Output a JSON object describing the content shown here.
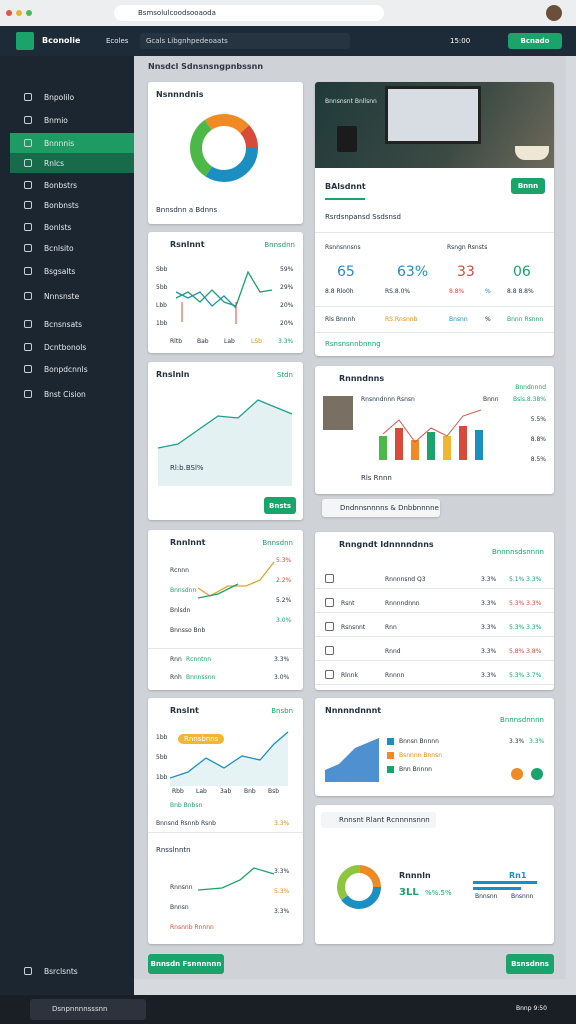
{
  "browser": {
    "url": "Bsmsolulcoodsooaoda"
  },
  "header": {
    "brand": "Bconolie",
    "nav": "Ecoles",
    "search": "Gcals Libgnhpedeoaats",
    "time": "15:00",
    "button": "Bcnado"
  },
  "sidebar": {
    "items": [
      "Bnpolilo",
      "Bnmio",
      "Bnnnnis",
      "Rnlcs",
      "Bonbstrs",
      "Bonbnsts",
      "Bonlsts",
      "Bcnlsito",
      "Bsgsalts",
      "Nnnsnste",
      "Bcnsnsats",
      "Dcntbonols",
      "Bonpdcnnls",
      "Bnst Cision"
    ],
    "footer": "Bsrclsnts"
  },
  "page_title": "Nnsdcl Sdnsnsngpnbssnn",
  "left": {
    "donut_card": {
      "title": "Nsnnndnis",
      "footer": "Bnnsdnn a Bdnns"
    },
    "line_card": {
      "title": "Rsnlnnt",
      "tag": "Bnnsdnn",
      "y_labels": [
        "Sbb",
        "5bb",
        "Lbb",
        "1bb"
      ],
      "right_labels": [
        "59%",
        "29%",
        "20%",
        "20%"
      ],
      "x_labels": [
        "Rltb",
        "Bab",
        "Lab",
        "LSb",
        "3.3%"
      ]
    },
    "area_card": {
      "title": "Rnslnln",
      "tag": "Stdn",
      "label": "Rl:b.BSl%",
      "button": "Bnsts"
    },
    "trend_card": {
      "title": "Rnnlnnt",
      "tag": "Bnnsdnn",
      "labels": [
        "Rcnnn",
        "Bnnsdnn",
        "Bnlsdn",
        "Bnnsso Bnb"
      ],
      "values": [
        "5.3%",
        "2.2%",
        "5.2%",
        "3.0%"
      ],
      "rows": [
        [
          "Rnn",
          "Rcnntnn",
          "3.3%"
        ],
        [
          "Rnh",
          "Bnnnssnn",
          "3.0%"
        ]
      ]
    },
    "growth_card": {
      "title": "Rnslnt",
      "tag": "Bnsbn",
      "pill": "Rnnsbnns",
      "y_labels": [
        "1bb",
        "5bb",
        "1bb"
      ],
      "x_labels": [
        "Rbb",
        "Lab",
        "3ab",
        "Bnb",
        "Bsb"
      ],
      "note": "Bnb Bnbsn",
      "row": [
        "Bnnsnd Rsnnb Rsnb",
        "3.3%"
      ],
      "sub_title": "Rnsslnntn",
      "sub_labels": [
        "Rnnsnn",
        "Bnnsn",
        "Rnsnnb Rnnnn"
      ],
      "sub_values": [
        "3.3%",
        "5.3%",
        "3.3%"
      ]
    },
    "button": "Bnnsdn Fsnnnnnn"
  },
  "right": {
    "image_card": {
      "screen_text": "Bnnsnsnt Bnllsnn",
      "title": "BAlsdnnt",
      "button": "Bnnn",
      "dropdown": "Rsrdsnpansd Ssdsnsd",
      "col_heads": [
        "Rsnnsnnsns",
        "Rsngn Rsnsts"
      ],
      "metrics": [
        "65",
        "63%",
        "33",
        "06"
      ],
      "sub": [
        "8.8 Rlo0h",
        "RS.8.0%",
        "8.8%",
        "%",
        "8.8 8.8%"
      ],
      "row": [
        "Rls Bnnnh",
        "RS.Rnsnnb",
        "Bnsnn",
        "%",
        "Bnnn Rsnnn"
      ],
      "link": "Rsnsnsnnbnnng"
    },
    "bar_card": {
      "title": "Rnnndnns",
      "tag": "Bnndnnnd",
      "values": [
        "Bsls.8.38%",
        "5.5%",
        "8.8%",
        "8.5%"
      ],
      "top_labels": [
        "Rnsnndnnn Rsnsn",
        "Bnnn"
      ],
      "legend": "Rls Rnnn"
    },
    "pill": "Dndnnsnnnns & Dnbbnnnne",
    "table_card": {
      "title": "Rnngndt Idnnnndnns",
      "tag": "Bnnnnsdsnnnn",
      "rows": [
        [
          "Rnnnnsnd Q3",
          "3.3%",
          "5.1% 3.3%"
        ],
        [
          "Rnnnndnnn",
          "3.3%",
          "5.3% 3.3%"
        ],
        [
          "Rnn",
          "3.3%",
          "5.3% 3.3%"
        ],
        [
          "Rnnd",
          "3.3%",
          "5.8% 3.8%"
        ],
        [
          "Rnnnn",
          "3.3%",
          "5.3% 3.7%"
        ]
      ],
      "names": [
        "",
        "Rsnt",
        "Rsnsnnt",
        "",
        "Rlnnk"
      ]
    },
    "area_card": {
      "title": "Nnnnndnnnt",
      "tag": "Bnnnsdnnnn",
      "legend": [
        "Bnnsn Bnnnn",
        "Bsnnnn Bnnsn",
        "Bnn Bnnnn"
      ],
      "stat": [
        "3.3%",
        "3.3%"
      ]
    },
    "donut_card": {
      "pill": "Rnnsnt Rlant Rcnnnnsnnn",
      "title": "Rnnnln",
      "stat": "3LL",
      "pct": "%%.5%",
      "bar_label": "Rn1",
      "bar_legend": [
        "Bnnsnn",
        "Bnsnnn"
      ]
    },
    "button": "Bsnsdnns"
  },
  "taskbar": {
    "search": "Dsnpnnnnsssnn",
    "time": "Bnnp 9:50"
  }
}
